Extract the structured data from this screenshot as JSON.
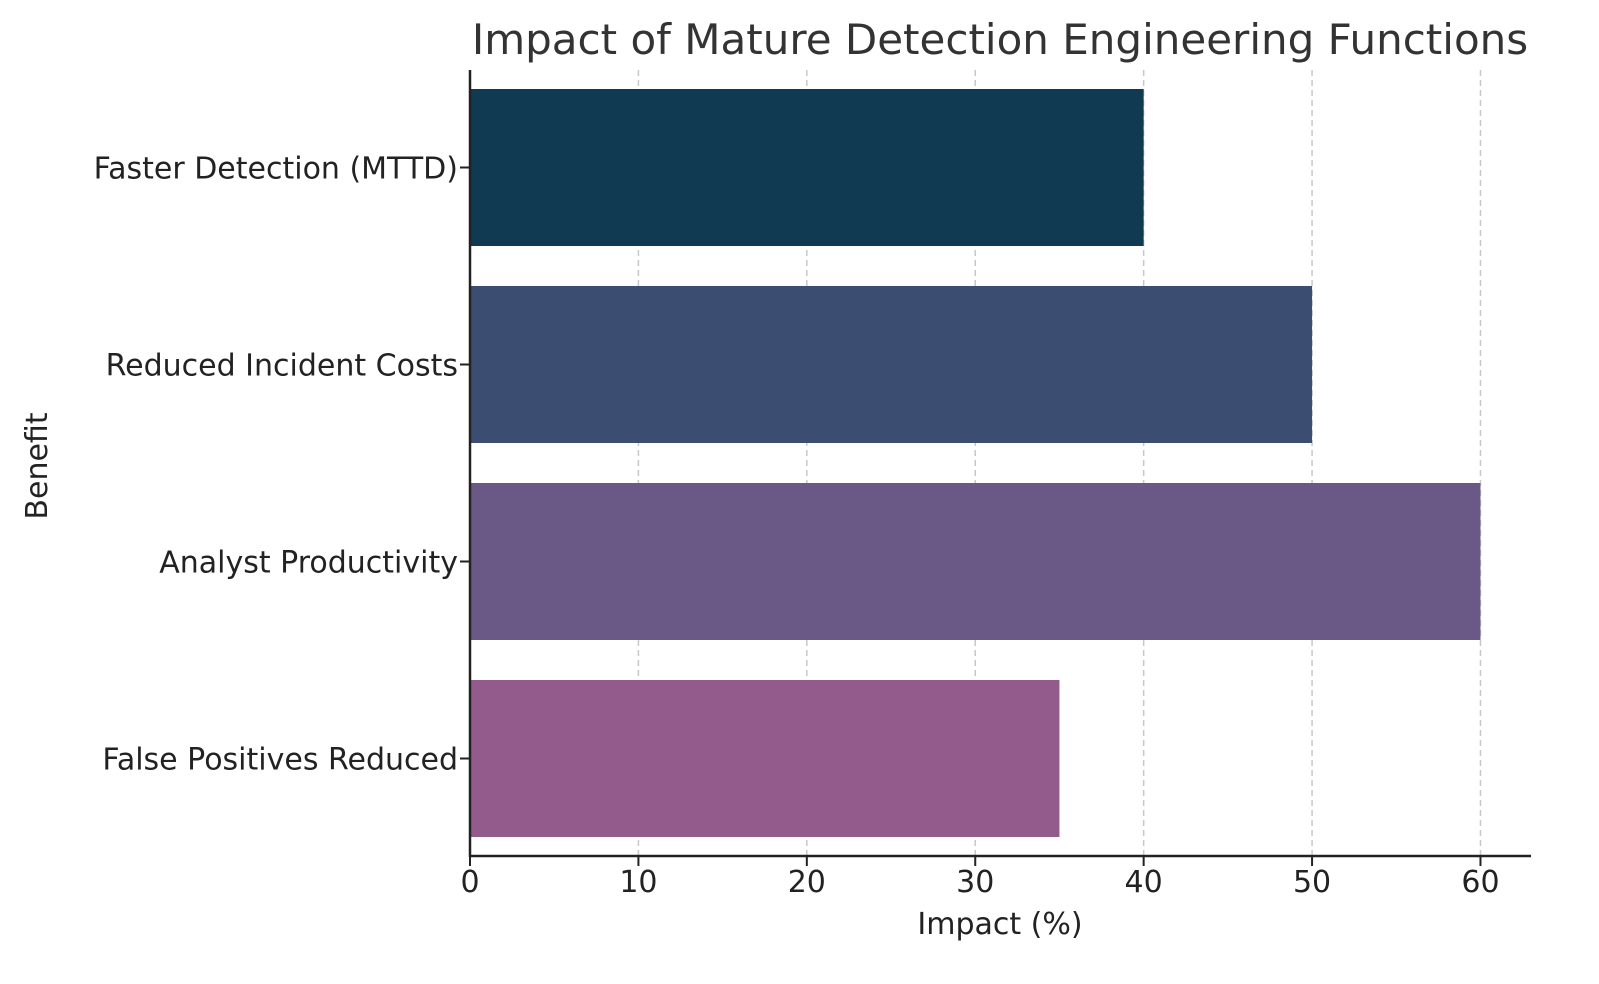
{
  "chart_data": {
    "type": "bar",
    "orientation": "horizontal",
    "title": "Impact of Mature Detection Engineering Functions",
    "xlabel": "Impact (%)",
    "ylabel": "Benefit",
    "categories": [
      "Faster Detection (MTTD)",
      "Reduced Incident Costs",
      "Analyst Productivity",
      "False Positives Reduced"
    ],
    "values": [
      40,
      50,
      60,
      35
    ],
    "bar_colors": [
      "#0f3a51",
      "#3b4d71",
      "#6a5887",
      "#935b8c"
    ],
    "xlim": [
      0,
      63
    ],
    "xticks": [
      0,
      10,
      20,
      30,
      40,
      50,
      60
    ],
    "xtick_labels": [
      "0",
      "10",
      "20",
      "30",
      "40",
      "50",
      "60"
    ],
    "grid": "x, dashed",
    "axis_color": "#222222",
    "grid_color": "#c8c8c8"
  }
}
